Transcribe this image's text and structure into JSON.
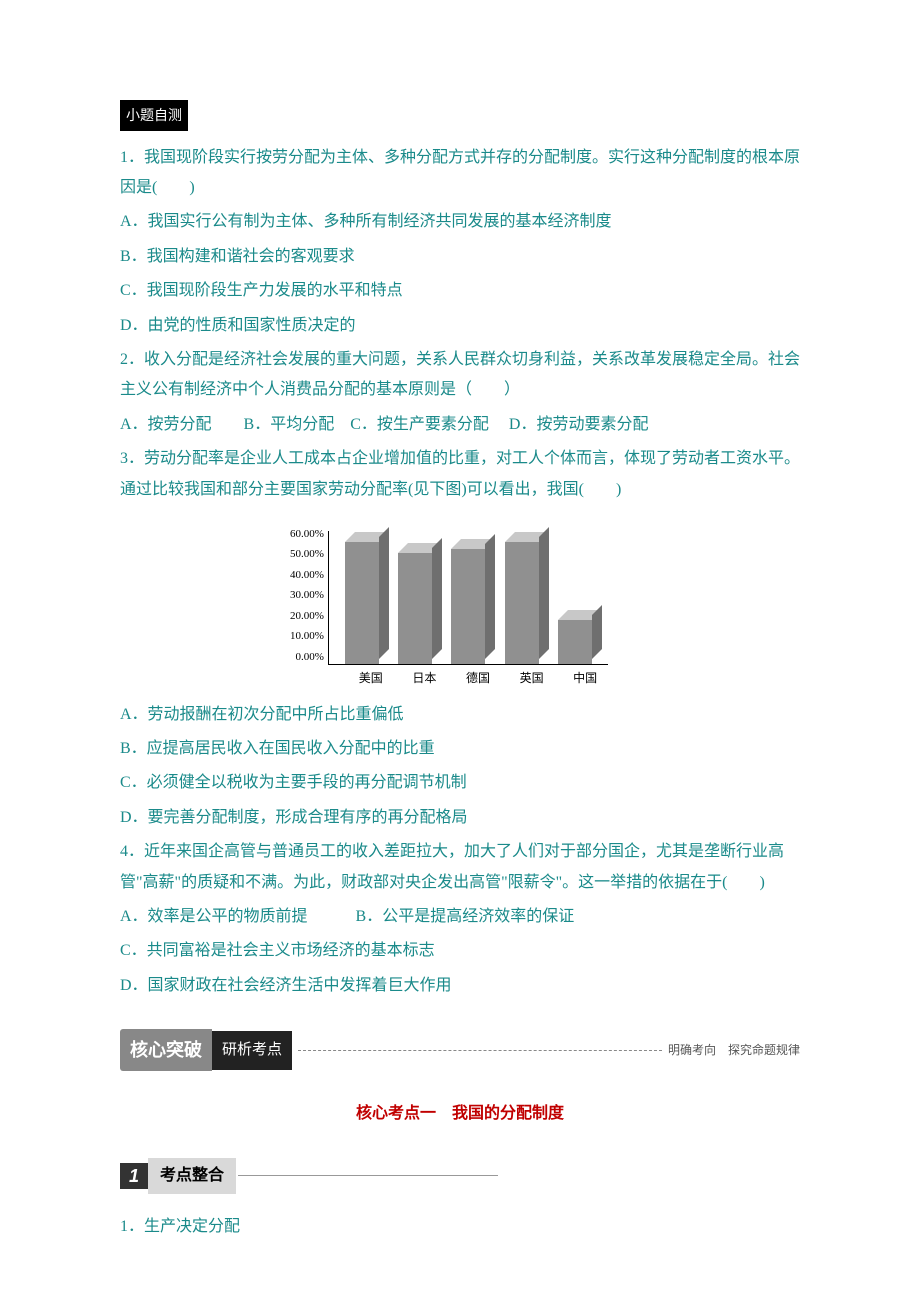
{
  "badge": "小题自测",
  "q1": {
    "stem": "1．我国现阶段实行按劳分配为主体、多种分配方式并存的分配制度。实行这种分配制度的根本原因是(　　)",
    "a": "A．我国实行公有制为主体、多种所有制经济共同发展的基本经济制度",
    "b": "B．我国构建和谐社会的客观要求",
    "c": "C．我国现阶段生产力发展的水平和特点",
    "d": "D．由党的性质和国家性质决定的"
  },
  "q2": {
    "stem": "2．收入分配是经济社会发展的重大问题，关系人民群众切身利益，关系改革发展稳定全局。社会主义公有制经济中个人消费品分配的基本原则是（　　）",
    "a": "A．按劳分配　　B．平均分配　C．按生产要素分配　 D．按劳动要素分配"
  },
  "q3": {
    "stem": "3．劳动分配率是企业人工成本占企业增加值的比重，对工人个体而言，体现了劳动者工资水平。通过比较我国和部分主要国家劳动分配率(见下图)可以看出，我国(　　)",
    "a": "A．劳动报酬在初次分配中所占比重偏低",
    "b": "B．应提高居民收入在国民收入分配中的比重",
    "c": "C．必须健全以税收为主要手段的再分配调节机制",
    "d": "D．要完善分配制度，形成合理有序的再分配格局"
  },
  "q4": {
    "stem": "4．近年来国企高管与普通员工的收入差距拉大，加大了人们对于部分国企，尤其是垄断行业高管\"高薪\"的质疑和不满。为此，财政部对央企发出高管\"限薪令\"。这一举措的依据在于(　　)",
    "a": "A．效率是公平的物质前提　　　B．公平是提高经济效率的保证",
    "c": "C．共同富裕是社会主义市场经济的基本标志",
    "d": "D．国家财政在社会经济生活中发挥着巨大作用"
  },
  "chart": {
    "type": "bar",
    "categories": [
      "美国",
      "日本",
      "德国",
      "英国",
      "中国"
    ],
    "values": [
      55,
      50,
      52,
      55,
      20
    ],
    "y_ticks": [
      "60.00%",
      "50.00%",
      "40.00%",
      "30.00%",
      "20.00%",
      "10.00%",
      "0.00%"
    ],
    "ylim_max": 60,
    "bar_color_front": "#909090",
    "bar_color_top": "#c8c8c8",
    "bar_color_side": "#6f6f6f",
    "grid_color": "#b8b8b8",
    "background_color": "#ffffff",
    "label_fontsize": 11
  },
  "core": {
    "badge": "核心突破",
    "sub": "研析考点",
    "note": "明确考向　探究命题规律",
    "topic": "核心考点一　我国的分配制度",
    "section_num": "1",
    "section_label": "考点整合",
    "point1": "1．生产决定分配"
  },
  "colors": {
    "teal": "#1a8a8a",
    "red": "#c00000",
    "badge_bg": "#000000",
    "grey_badge": "#888888"
  }
}
